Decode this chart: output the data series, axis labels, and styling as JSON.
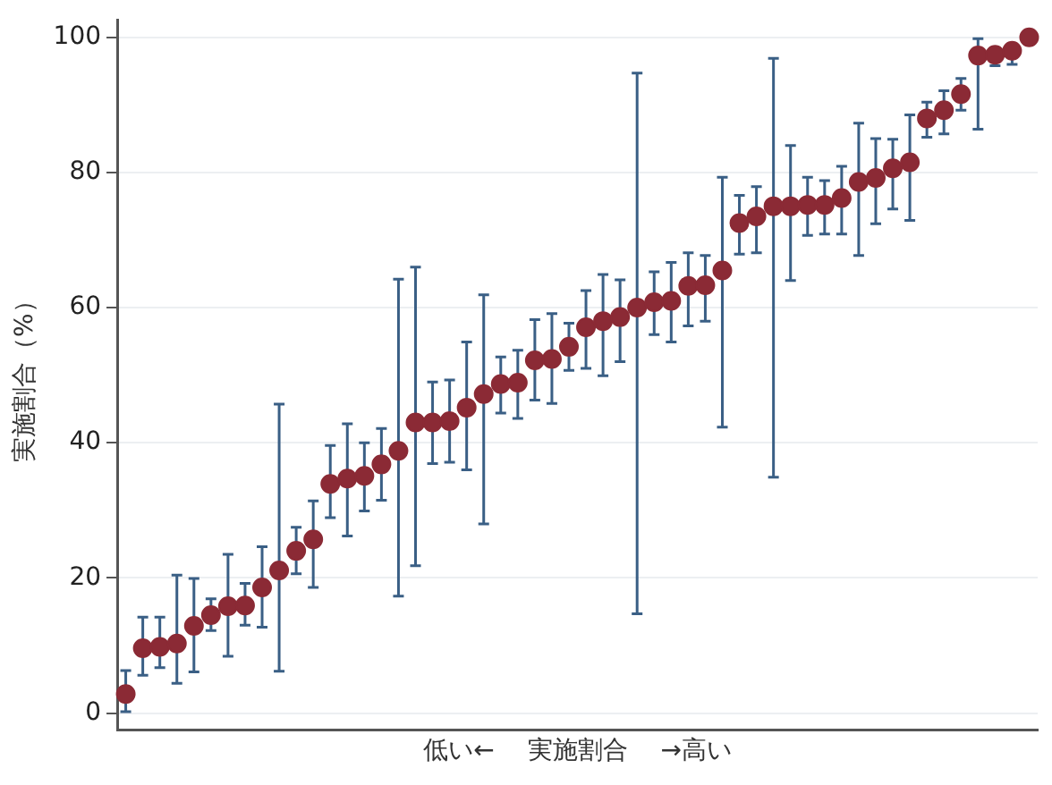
{
  "chart_data": {
    "type": "scatter",
    "xlabel": "低い←　 実施割合　 →高い",
    "ylabel": "実施割合（%）",
    "categories": [
      null,
      null,
      null,
      null,
      null,
      null,
      null,
      null,
      null,
      null,
      null,
      null,
      null,
      null,
      null,
      null,
      null,
      null,
      null,
      null,
      null,
      null,
      null,
      null,
      null,
      null,
      null,
      null,
      null,
      null,
      null,
      null,
      null,
      null,
      null,
      null,
      null,
      null,
      null,
      null,
      null,
      null,
      null,
      null,
      null,
      null,
      null,
      null,
      null,
      null,
      null,
      null,
      null,
      null
    ],
    "series": [
      {
        "color": "#8b2a35",
        "values": [
          2.8,
          9.6,
          9.8,
          10.3,
          12.9,
          14.5,
          15.8,
          15.9,
          18.6,
          21.1,
          24.0,
          25.7,
          33.9,
          34.7,
          35.1,
          36.8,
          38.8,
          43.0,
          43.0,
          43.2,
          45.2,
          47.2,
          48.7,
          48.9,
          52.2,
          52.4,
          54.2,
          57.1,
          58.0,
          58.6,
          60.0,
          60.8,
          61.0,
          63.2,
          63.3,
          65.5,
          72.5,
          73.5,
          75.0,
          75.0,
          75.2,
          75.2,
          76.2,
          78.6,
          79.2,
          80.6,
          81.5,
          88.0,
          89.2,
          91.6,
          97.3,
          97.4,
          98.0,
          100.0
        ],
        "errors": [
          [
            0.2,
            6.3
          ],
          [
            5.6,
            14.2
          ],
          [
            6.7,
            14.2
          ],
          [
            4.4,
            20.4
          ],
          [
            6.1,
            19.9
          ],
          [
            12.2,
            16.9
          ],
          [
            8.4,
            23.5
          ],
          [
            13.0,
            19.2
          ],
          [
            12.7,
            24.6
          ],
          [
            6.2,
            45.7
          ],
          [
            20.6,
            27.5
          ],
          [
            18.6,
            31.4
          ],
          [
            28.9,
            39.6
          ],
          [
            26.2,
            42.8
          ],
          [
            29.9,
            40.0
          ],
          [
            31.5,
            42.1
          ],
          [
            17.3,
            64.2
          ],
          [
            21.8,
            66.0
          ],
          [
            36.9,
            49.0
          ],
          [
            37.1,
            49.3
          ],
          [
            36.0,
            54.9
          ],
          [
            28.0,
            61.9
          ],
          [
            44.4,
            52.7
          ],
          [
            43.6,
            53.7
          ],
          [
            46.3,
            58.2
          ],
          [
            45.8,
            59.1
          ],
          [
            50.7,
            57.7
          ],
          [
            51.0,
            62.5
          ],
          [
            49.9,
            64.9
          ],
          [
            52.0,
            64.1
          ],
          [
            14.7,
            94.7
          ],
          [
            56.0,
            65.3
          ],
          [
            54.9,
            66.7
          ],
          [
            57.3,
            68.1
          ],
          [
            58.0,
            67.7
          ],
          [
            42.3,
            79.3
          ],
          [
            67.9,
            76.6
          ],
          [
            68.1,
            77.9
          ],
          [
            34.9,
            96.9
          ],
          [
            64.0,
            84.0
          ],
          [
            70.7,
            79.3
          ],
          [
            70.9,
            78.8
          ],
          [
            70.9,
            80.9
          ],
          [
            67.7,
            87.3
          ],
          [
            72.4,
            85.0
          ],
          [
            74.6,
            84.9
          ],
          [
            72.9,
            88.5
          ],
          [
            85.2,
            90.4
          ],
          [
            85.7,
            92.1
          ],
          [
            89.2,
            93.9
          ],
          [
            86.4,
            99.8
          ],
          [
            95.8,
            98.4
          ],
          [
            96.0,
            98.8
          ],
          null
        ]
      }
    ],
    "ylim": [
      -2.5,
      102.5
    ],
    "yticks": [
      0,
      20,
      40,
      60,
      80,
      100
    ],
    "grid": "y",
    "legend": false,
    "marker": "circle"
  }
}
